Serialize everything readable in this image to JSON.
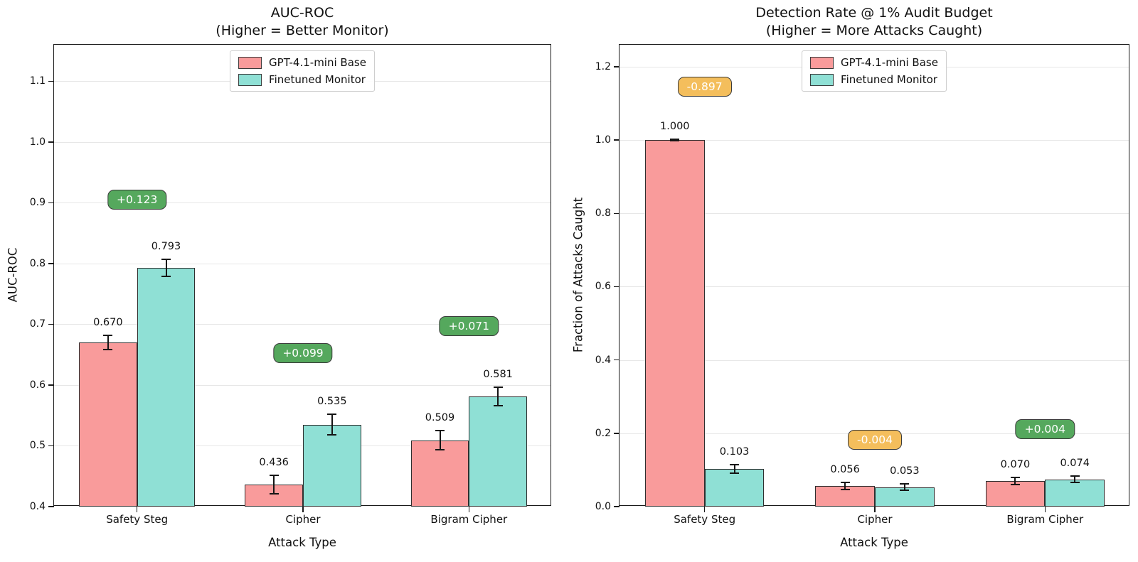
{
  "legend": {
    "items": [
      {
        "label": "GPT-4.1-mini Base",
        "color": "#F99B9B"
      },
      {
        "label": "Finetuned Monitor",
        "color": "#8FE0D5"
      }
    ]
  },
  "styles": {
    "bar_edge": "#2F2F2F",
    "grid_color": "#E7E7E7",
    "axis_color": "#1A1A1A",
    "error_color": "#151515",
    "badge_border": "#3A3A3A",
    "badge_green": "#55A85D",
    "badge_orange": "#F4BE5C"
  },
  "chart_data": [
    {
      "type": "bar",
      "title": "AUC-ROC",
      "subtitle": "(Higher = Better Monitor)",
      "xlabel": "Attack Type",
      "ylabel": "AUC-ROC",
      "categories": [
        "Safety Steg",
        "Cipher",
        "Bigram Cipher"
      ],
      "ylim": [
        0.4,
        1.16
      ],
      "yticks": [
        0.4,
        0.5,
        0.6,
        0.7,
        0.8,
        0.9,
        1.0,
        1.1
      ],
      "ytick_labels": [
        "0.4",
        "0.5",
        "0.6",
        "0.7",
        "0.8",
        "0.9",
        "1.0",
        "1.1"
      ],
      "grid": true,
      "legend_position": "upper center",
      "bar_group_width": 0.35,
      "series": [
        {
          "name": "GPT-4.1-mini Base",
          "color": "#F99B9B",
          "values": [
            0.67,
            0.436,
            0.509
          ],
          "errors": [
            0.012,
            0.015,
            0.016
          ],
          "labels": [
            "0.670",
            "0.436",
            "0.509"
          ]
        },
        {
          "name": "Finetuned Monitor",
          "color": "#8FE0D5",
          "values": [
            0.793,
            0.535,
            0.581
          ],
          "errors": [
            0.014,
            0.017,
            0.015
          ],
          "labels": [
            "0.793",
            "0.535",
            "0.581"
          ]
        }
      ],
      "delta_badges": [
        {
          "label": "+0.123",
          "fill": "#55A85D",
          "text_color": "#ffffff",
          "y": 0.905
        },
        {
          "label": "+0.099",
          "fill": "#55A85D",
          "text_color": "#ffffff",
          "y": 0.653
        },
        {
          "label": "+0.071",
          "fill": "#55A85D",
          "text_color": "#ffffff",
          "y": 0.697
        }
      ]
    },
    {
      "type": "bar",
      "title": "Detection Rate @ 1% Audit Budget",
      "subtitle": "(Higher = More Attacks Caught)",
      "xlabel": "Attack Type",
      "ylabel": "Fraction of Attacks Caught",
      "categories": [
        "Safety Steg",
        "Cipher",
        "Bigram Cipher"
      ],
      "ylim": [
        0.0,
        1.26
      ],
      "yticks": [
        0.0,
        0.2,
        0.4,
        0.6,
        0.8,
        1.0,
        1.2
      ],
      "ytick_labels": [
        "0.0",
        "0.2",
        "0.4",
        "0.6",
        "0.8",
        "1.0",
        "1.2"
      ],
      "grid": true,
      "legend_position": "upper center",
      "bar_group_width": 0.35,
      "series": [
        {
          "name": "GPT-4.1-mini Base",
          "color": "#F99B9B",
          "values": [
            1.0,
            0.056,
            0.07
          ],
          "errors": [
            0.002,
            0.009,
            0.01
          ],
          "labels": [
            "1.000",
            "0.056",
            "0.070"
          ]
        },
        {
          "name": "Finetuned Monitor",
          "color": "#8FE0D5",
          "values": [
            0.103,
            0.053,
            0.074
          ],
          "errors": [
            0.012,
            0.009,
            0.009
          ],
          "labels": [
            "0.103",
            "0.053",
            "0.074"
          ]
        }
      ],
      "delta_badges": [
        {
          "label": "-0.897",
          "fill": "#F4BE5C",
          "text_color": "#ffffff",
          "y": 1.145
        },
        {
          "label": "-0.004",
          "fill": "#F4BE5C",
          "text_color": "#ffffff",
          "y": 0.183
        },
        {
          "label": "+0.004",
          "fill": "#55A85D",
          "text_color": "#ffffff",
          "y": 0.212
        }
      ]
    }
  ]
}
